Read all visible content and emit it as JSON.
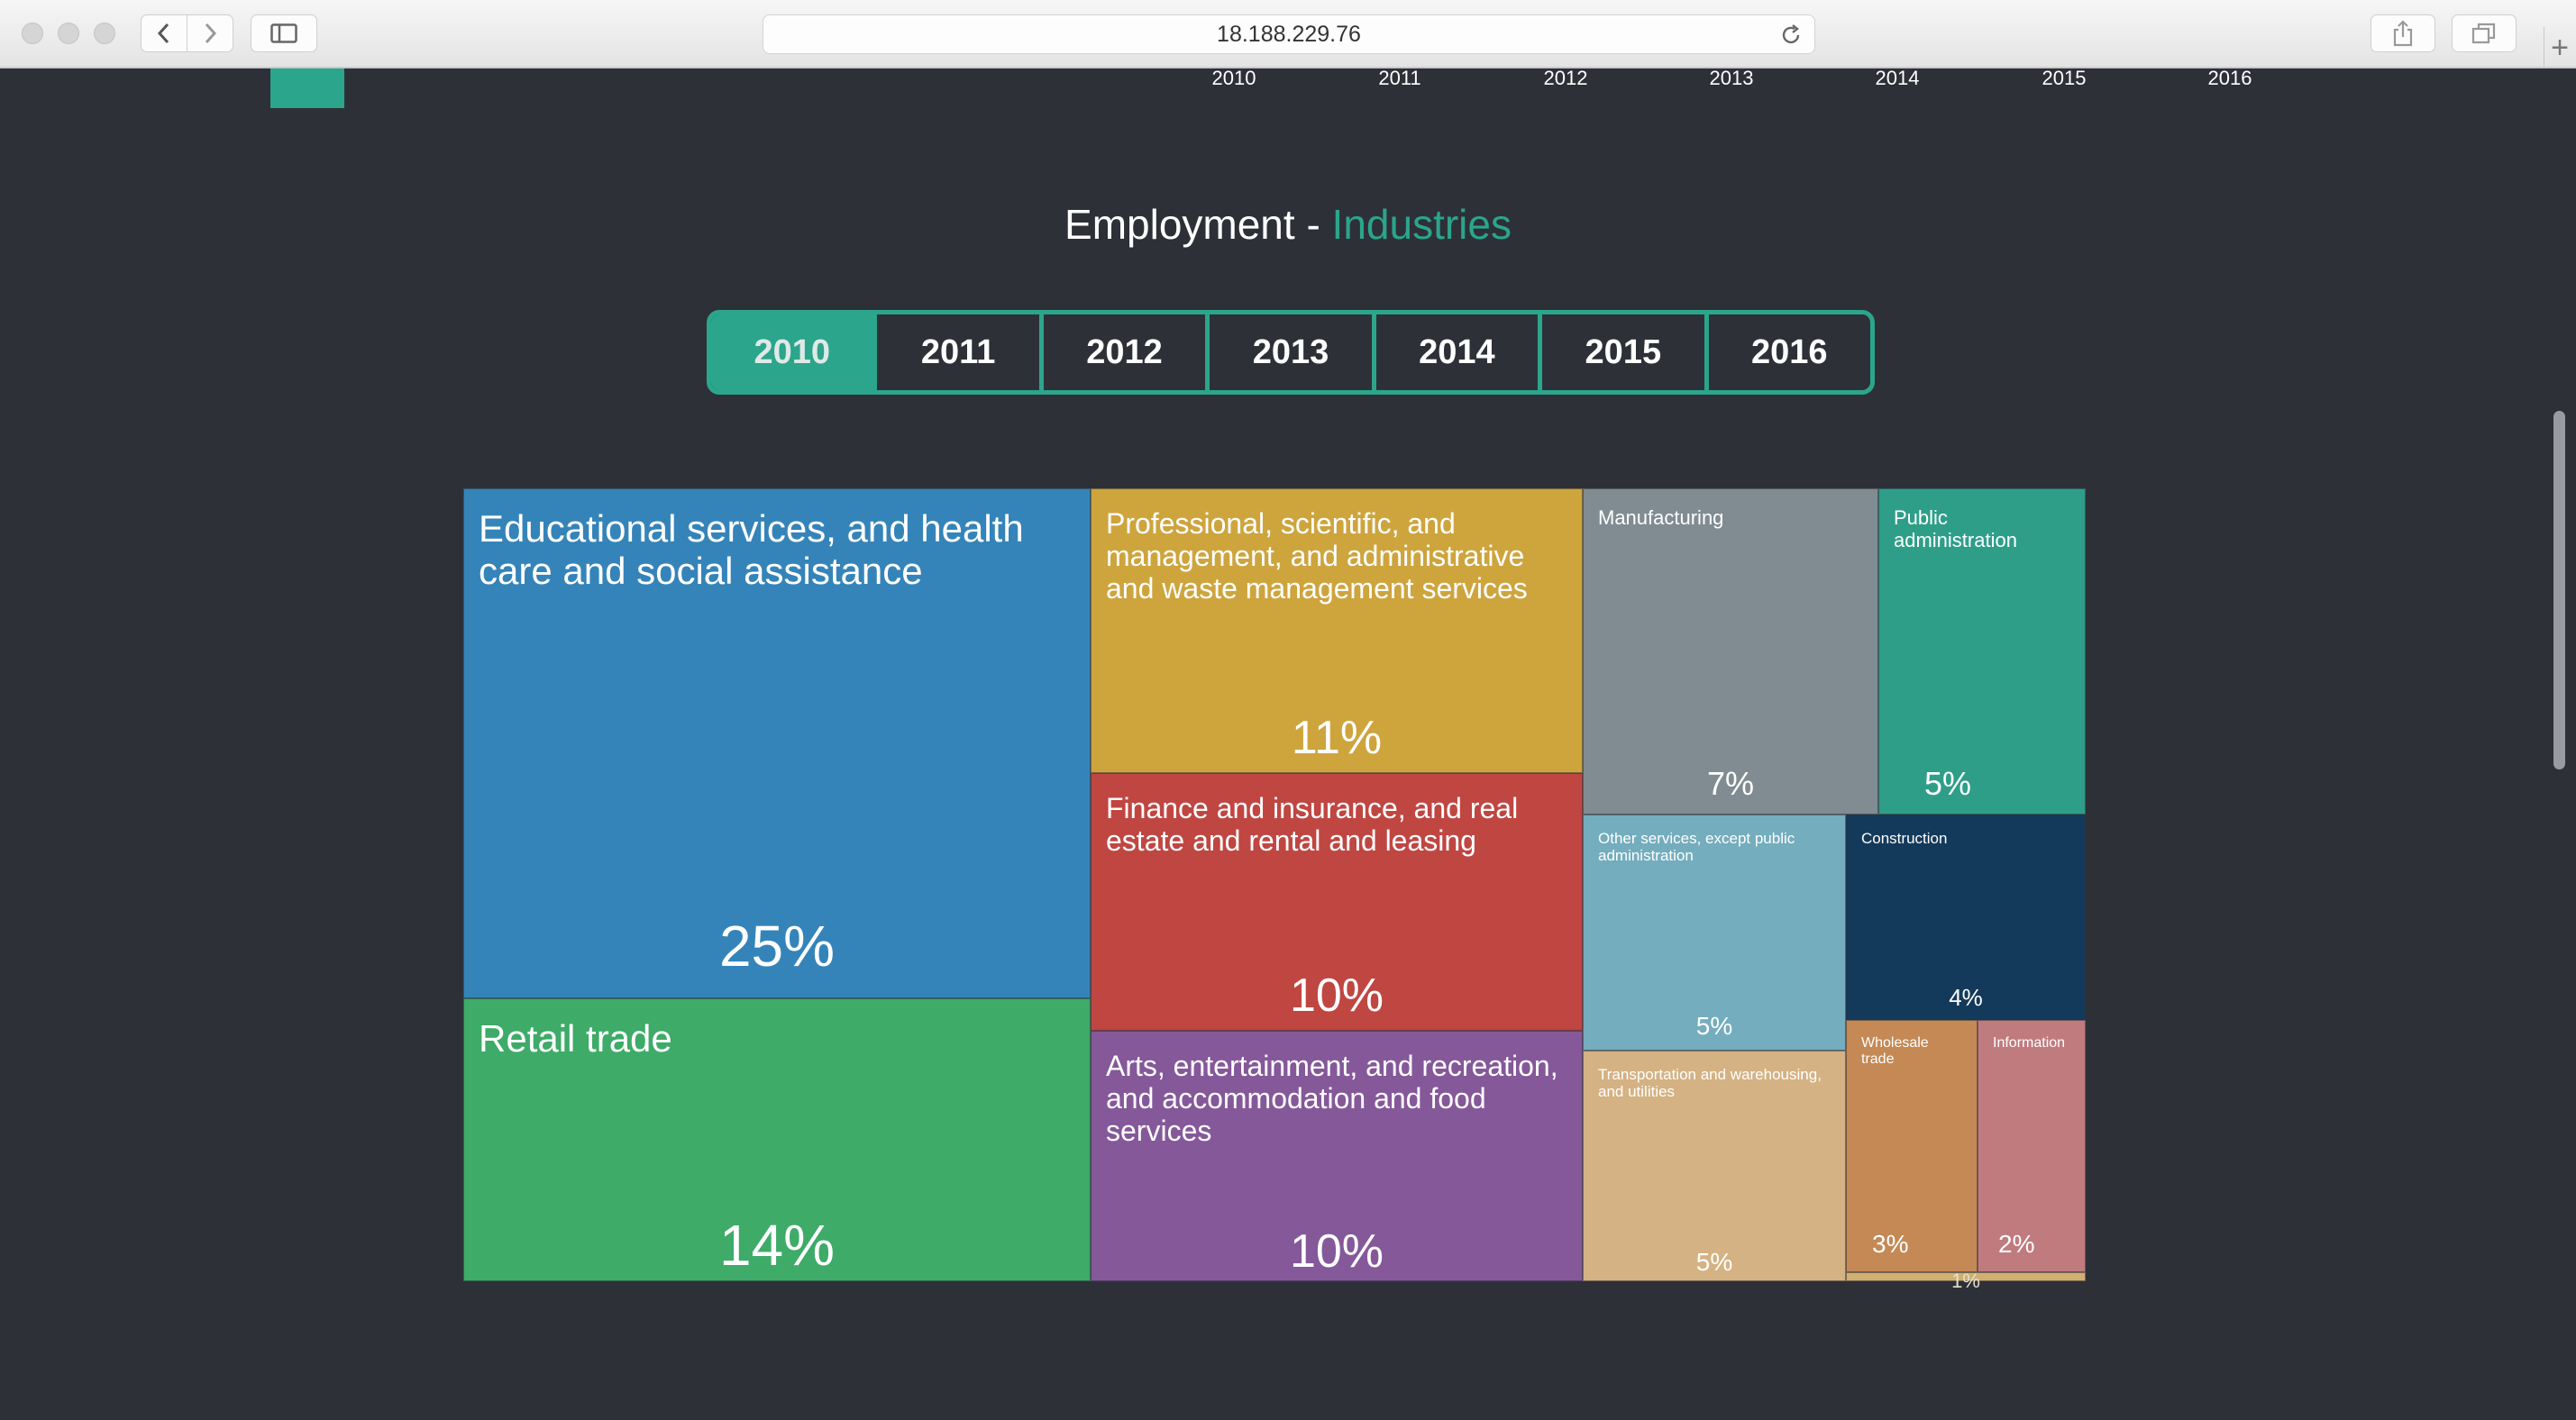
{
  "browser": {
    "url": "18.188.229.76"
  },
  "axis_years": [
    "2010",
    "2011",
    "2012",
    "2013",
    "2014",
    "2015",
    "2016"
  ],
  "title": {
    "prefix": "Employment - ",
    "accent": "Industries"
  },
  "tabs": [
    {
      "label": "2010",
      "active": true
    },
    {
      "label": "2011",
      "active": false
    },
    {
      "label": "2012",
      "active": false
    },
    {
      "label": "2013",
      "active": false
    },
    {
      "label": "2014",
      "active": false
    },
    {
      "label": "2015",
      "active": false
    },
    {
      "label": "2016",
      "active": false
    }
  ],
  "treemap": {
    "year": "2010",
    "tiles": [
      {
        "id": "education",
        "label": "Educational services, and health care and social assistance",
        "pct": "25%",
        "color": "#3584b9"
      },
      {
        "id": "retail",
        "label": "Retail trade",
        "pct": "14%",
        "color": "#3eab68"
      },
      {
        "id": "professional",
        "label": "Professional, scientific, and management, and administrative and waste management services",
        "pct": "11%",
        "color": "#cea43d"
      },
      {
        "id": "finance",
        "label": "Finance and insurance, and real estate and rental and leasing",
        "pct": "10%",
        "color": "#c04642"
      },
      {
        "id": "arts",
        "label": "Arts, entertainment, and recreation, and accommodation and food services",
        "pct": "10%",
        "color": "#85589a"
      },
      {
        "id": "manufacturing",
        "label": "Manufacturing",
        "pct": "7%",
        "color": "#818c92"
      },
      {
        "id": "public-admin",
        "label": "Public administration",
        "pct": "5%",
        "color": "#2e9e89"
      },
      {
        "id": "other-services",
        "label": "Other services, except public administration",
        "pct": "5%",
        "color": "#74adbd"
      },
      {
        "id": "construction",
        "label": "Construction",
        "pct": "4%",
        "color": "#143a5b"
      },
      {
        "id": "transportation",
        "label": "Transportation and warehousing, and utilities",
        "pct": "5%",
        "color": "#d4b283"
      },
      {
        "id": "wholesale",
        "label": "Wholesale trade",
        "pct": "3%",
        "color": "#c48955"
      },
      {
        "id": "information",
        "label": "Information",
        "pct": "2%",
        "color": "#c07b7f"
      },
      {
        "id": "agriculture",
        "label": "",
        "pct": "1%",
        "color": "#cfb071"
      }
    ]
  }
}
